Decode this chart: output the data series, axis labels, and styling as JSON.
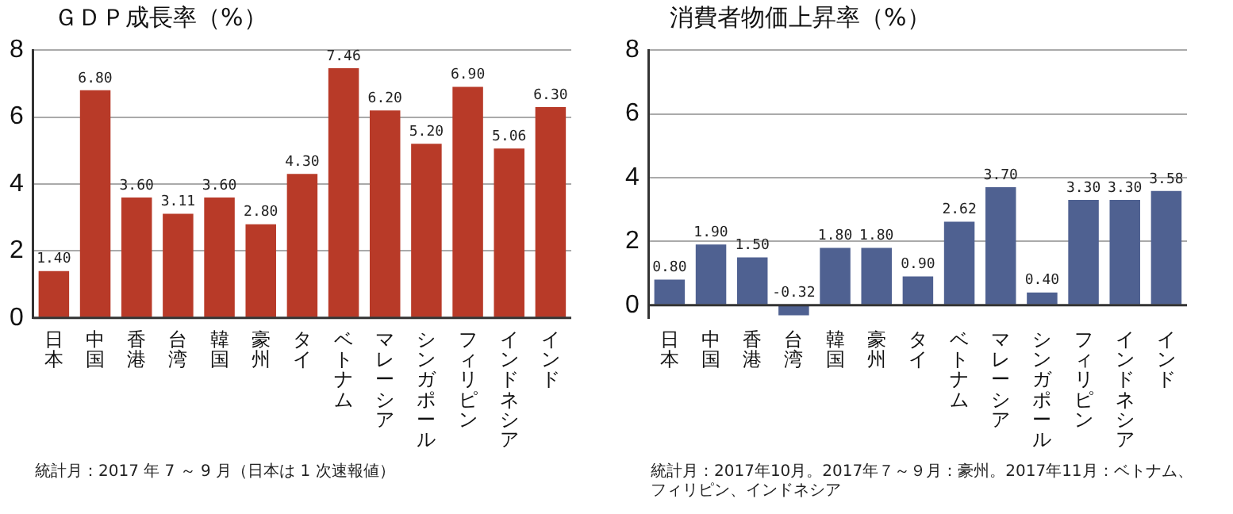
{
  "chart_data": [
    {
      "type": "bar",
      "title": "ＧＤＰ成長率（%）",
      "categories": [
        "日本",
        "中国",
        "香港",
        "台湾",
        "韓国",
        "豪州",
        "タイ",
        "ベトナム",
        "マレーシア",
        "シンガポール",
        "フィリピン",
        "インドネシア",
        "インド"
      ],
      "values": [
        1.4,
        6.8,
        3.6,
        3.11,
        3.6,
        2.8,
        4.3,
        7.46,
        6.2,
        5.2,
        6.9,
        5.06,
        6.3
      ],
      "value_labels": [
        "1.40",
        "6.80",
        "3.60",
        "3.11",
        "3.60",
        "2.80",
        "4.30",
        "7.46",
        "6.20",
        "5.20",
        "6.90",
        "5.06",
        "6.30"
      ],
      "color": "#b83a28",
      "ylim": [
        0,
        8
      ],
      "yticks": [
        0,
        2,
        4,
        6,
        8
      ],
      "grid": "y",
      "legend": false,
      "annotations": [
        "統計月：2017 年 7 ～ 9 月（日本は 1 次速報値）"
      ]
    },
    {
      "type": "bar",
      "title": "消費者物価上昇率（%）",
      "categories": [
        "日本",
        "中国",
        "香港",
        "台湾",
        "韓国",
        "豪州",
        "タイ",
        "ベトナム",
        "マレーシア",
        "シンガポール",
        "フィリピン",
        "インドネシア",
        "インド"
      ],
      "values": [
        0.8,
        1.9,
        1.5,
        -0.32,
        1.8,
        1.8,
        0.9,
        2.62,
        3.7,
        0.4,
        3.3,
        3.3,
        3.58
      ],
      "value_labels": [
        "0.80",
        "1.90",
        "1.50",
        "-0.32",
        "1.80",
        "1.80",
        "0.90",
        "2.62",
        "3.70",
        "0.40",
        "3.30",
        "3.30",
        "3.58"
      ],
      "color": "#4f6191",
      "ylim": [
        -0.4,
        8
      ],
      "yticks": [
        0,
        2,
        4,
        6,
        8
      ],
      "grid": "y",
      "legend": false,
      "annotations": [
        "統計月：2017年10月。2017年７～９月：豪州。2017年11月：ベトナム、フィリピン、インドネシア"
      ]
    }
  ]
}
